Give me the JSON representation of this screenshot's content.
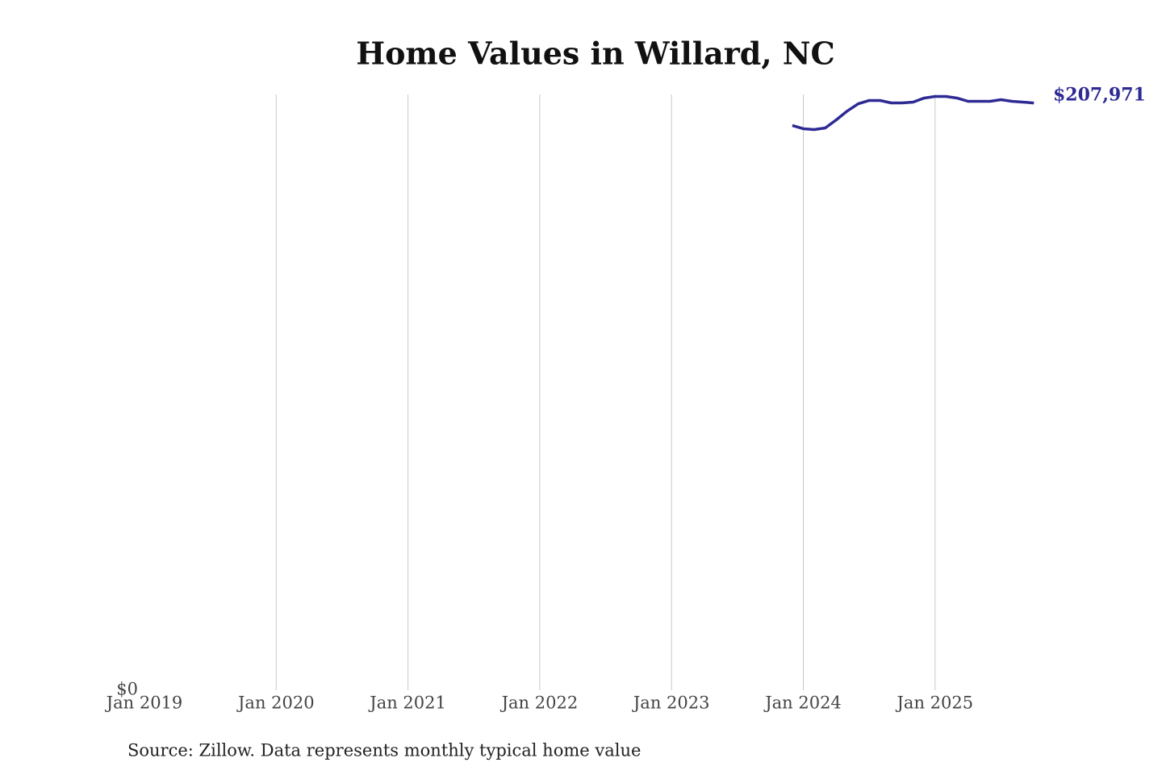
{
  "chart_data": {
    "type": "line",
    "title": "Home Values in Willard, NC",
    "source": "Source: Zillow. Data represents monthly typical home value",
    "x": [
      "2023-12",
      "2024-01",
      "2024-02",
      "2024-03",
      "2024-04",
      "2024-05",
      "2024-06",
      "2024-07",
      "2024-08",
      "2024-09",
      "2024-10",
      "2024-11",
      "2024-12",
      "2025-01",
      "2025-02",
      "2025-03",
      "2025-04",
      "2025-05",
      "2025-06",
      "2025-07",
      "2025-08",
      "2025-09",
      "2025-10"
    ],
    "series": [
      {
        "name": "Willard, NC",
        "color": "#2e2a94",
        "values": [
          200000,
          198860,
          198570,
          199140,
          202000,
          205130,
          207700,
          208860,
          208860,
          208000,
          208000,
          208290,
          209720,
          210290,
          210290,
          209720,
          208570,
          208570,
          208570,
          209140,
          208570,
          208290,
          207971
        ],
        "end_label": "$207,971"
      }
    ],
    "xlim": [
      "2019-01",
      "2025-10"
    ],
    "xticks": [
      {
        "value": "2019-01",
        "label": "Jan 2019"
      },
      {
        "value": "2020-01",
        "label": "Jan 2020"
      },
      {
        "value": "2021-01",
        "label": "Jan 2021"
      },
      {
        "value": "2022-01",
        "label": "Jan 2022"
      },
      {
        "value": "2023-01",
        "label": "Jan 2023"
      },
      {
        "value": "2024-01",
        "label": "Jan 2024"
      },
      {
        "value": "2025-01",
        "label": "Jan 2025"
      }
    ],
    "ylim": [
      0,
      211000
    ],
    "yticks": [
      {
        "value": 0,
        "label": "$0"
      }
    ],
    "grid": true
  }
}
